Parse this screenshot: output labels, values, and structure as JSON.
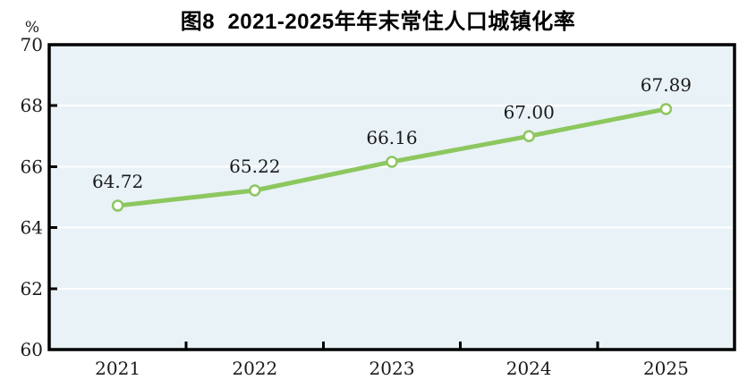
{
  "title": "图8  2021-2025年年末常住人口城镇化率",
  "unit_label": "%",
  "colors": {
    "line_green": "#8CC75F",
    "marker_fill": "#FFFFFF",
    "plot_background": "#E9F2F7",
    "gridline": "#FFFFFF",
    "axis_frame": "#000000",
    "text": "#1A1A1A"
  },
  "chart_data": {
    "type": "line",
    "title": "图8  2021-2025年年末常住人口城镇化率",
    "categories": [
      "2021",
      "2022",
      "2023",
      "2024",
      "2025"
    ],
    "series": [
      {
        "name": "年末常住人口城镇化率",
        "values": [
          64.72,
          65.22,
          66.16,
          67.0,
          67.89
        ]
      }
    ],
    "data_labels": [
      "64.72",
      "65.22",
      "66.16",
      "67.00",
      "67.89"
    ],
    "xlabel": "",
    "ylabel": "%",
    "ylim": [
      60,
      70
    ],
    "yticks": [
      60,
      62,
      64,
      66,
      68,
      70
    ],
    "ytick_labels": [
      "60",
      "62",
      "64",
      "66",
      "68",
      "70"
    ],
    "grid": "horizontal-white",
    "legend_position": "none",
    "marker": "circle-open"
  }
}
